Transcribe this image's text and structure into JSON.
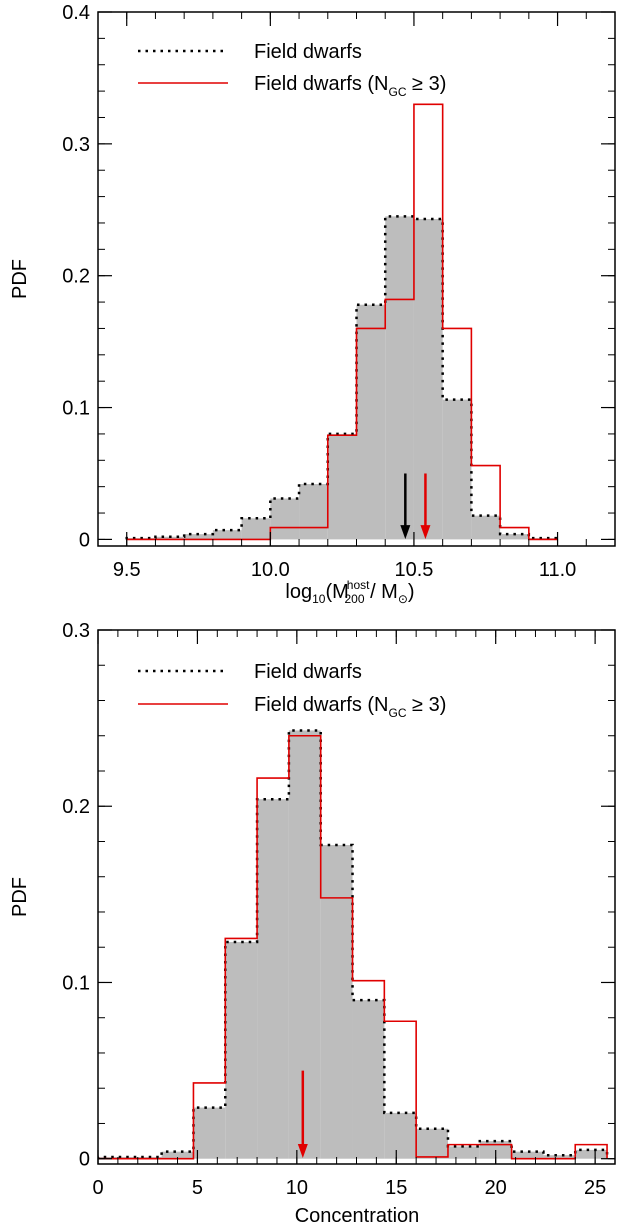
{
  "chart_data": [
    {
      "type": "histogram",
      "xlabel": "log10(M200host / M⊙)",
      "xlabel_parts": {
        "base": "log",
        "base_sub": "10",
        "open": "(M",
        "m_sub": "200",
        "m_sup": "host",
        "mid": " / M",
        "sun_sub": "⊙",
        "close": ")"
      },
      "ylabel": "PDF",
      "xlim": [
        9.4,
        11.2
      ],
      "ylim": [
        -0.005,
        0.4
      ],
      "xticks": [
        9.5,
        10.0,
        10.5,
        11.0
      ],
      "xtick_labels": [
        "9.5",
        "10.0",
        "10.5",
        "11.0"
      ],
      "yticks": [
        0,
        0.1,
        0.2,
        0.3,
        0.4
      ],
      "ytick_labels": [
        "0",
        "0.1",
        "0.2",
        "0.3",
        "0.4"
      ],
      "legend": [
        {
          "name": "Field dwarfs",
          "style": "dotted",
          "color": "#000000"
        },
        {
          "name": "Field dwarfs (N",
          "sub": "GC",
          "suffix": " ≥ 3)",
          "style": "solid",
          "color": "#e00000"
        }
      ],
      "bin_edges": [
        9.5,
        9.6,
        9.7,
        9.8,
        9.9,
        10.0,
        10.1,
        10.2,
        10.3,
        10.4,
        10.5,
        10.6,
        10.7,
        10.8,
        10.9,
        11.0
      ],
      "series": [
        {
          "name": "Field dwarfs",
          "values": [
            0.001,
            0.002,
            0.004,
            0.007,
            0.016,
            0.031,
            0.042,
            0.08,
            0.178,
            0.245,
            0.243,
            0.106,
            0.018,
            0.004,
            0.001
          ]
        },
        {
          "name": "Field dwarfs (NGC ≥ 3)",
          "values": [
            0,
            0,
            0,
            0,
            0,
            0.009,
            0.009,
            0.079,
            0.16,
            0.182,
            0.33,
            0.16,
            0.056,
            0.009,
            0
          ]
        }
      ],
      "markers": [
        {
          "x": 10.47,
          "color": "#000000"
        },
        {
          "x": 10.54,
          "color": "#e00000"
        }
      ]
    },
    {
      "type": "histogram",
      "xlabel": "Concentration",
      "ylabel": "PDF",
      "xlim": [
        0,
        26
      ],
      "ylim": [
        -0.003,
        0.3
      ],
      "xticks": [
        0,
        5,
        10,
        15,
        20,
        25
      ],
      "xtick_labels": [
        "0",
        "5",
        "10",
        "15",
        "20",
        "25"
      ],
      "yticks": [
        0,
        0.1,
        0.2,
        0.3
      ],
      "ytick_labels": [
        "0",
        "0.1",
        "0.2",
        "0.3"
      ],
      "legend": [
        {
          "name": "Field dwarfs",
          "style": "dotted",
          "color": "#000000"
        },
        {
          "name": "Field dwarfs (N",
          "sub": "GC",
          "suffix": " ≥ 3)",
          "style": "solid",
          "color": "#e00000"
        }
      ],
      "bin_edges": [
        0,
        1.6,
        3.2,
        4.8,
        6.4,
        8.0,
        9.6,
        11.2,
        12.8,
        14.4,
        16.0,
        17.6,
        19.2,
        20.8,
        22.4,
        24.0,
        25.6
      ],
      "series": [
        {
          "name": "Field dwarfs",
          "values": [
            0.001,
            0.001,
            0.004,
            0.029,
            0.123,
            0.204,
            0.243,
            0.178,
            0.09,
            0.026,
            0.017,
            0.007,
            0.01,
            0.004,
            0.002,
            0.005
          ]
        },
        {
          "name": "Field dwarfs (NGC ≥ 3)",
          "values": [
            0,
            0,
            0,
            0.043,
            0.125,
            0.216,
            0.24,
            0.148,
            0.101,
            0.078,
            0.001,
            0.008,
            0.008,
            0,
            0,
            0.008
          ]
        }
      ],
      "markers": [
        {
          "x": 10.3,
          "color": "#e00000"
        }
      ]
    }
  ]
}
